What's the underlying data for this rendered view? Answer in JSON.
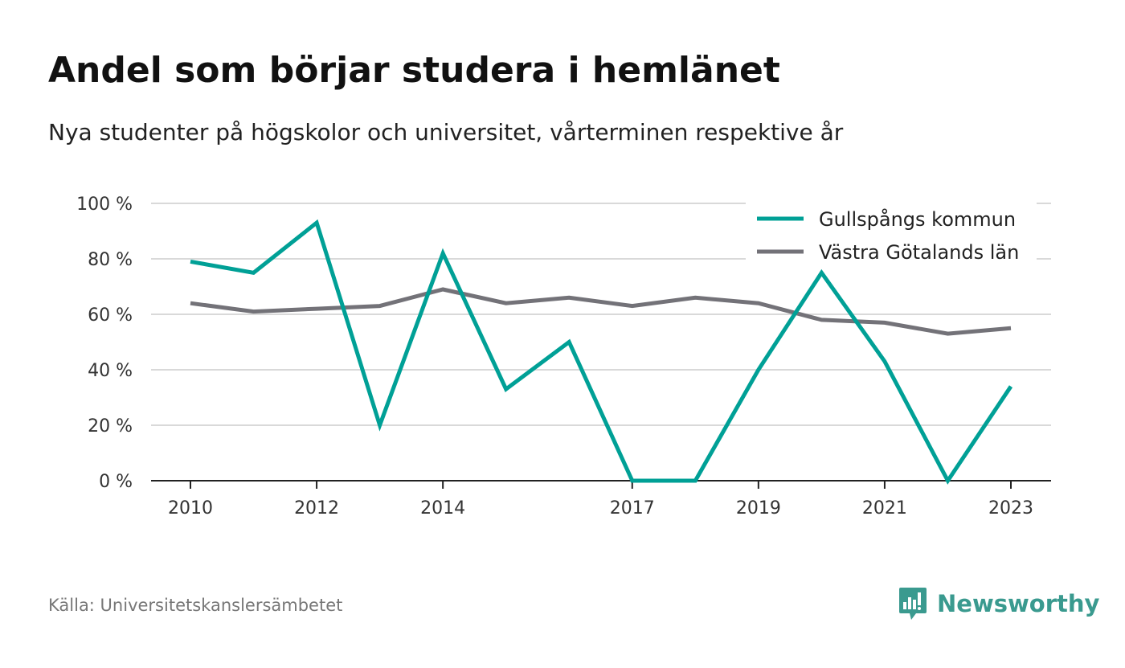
{
  "header": {
    "title": "Andel som börjar studera i hemlänet",
    "subtitle": "Nya studenter på högskolor och universitet, vårterminen respektive år"
  },
  "footer": {
    "source": "Källa: Universitetskanslersämbetet",
    "brand": "Newsworthy"
  },
  "colors": {
    "series_1": "#00a096",
    "series_2": "#737278",
    "brand": "#3a9a8f"
  },
  "chart_data": {
    "type": "line",
    "x": [
      2010,
      2011,
      2012,
      2013,
      2014,
      2015,
      2016,
      2017,
      2018,
      2019,
      2020,
      2021,
      2022,
      2023
    ],
    "x_tick_labels": [
      "2010",
      "2012",
      "2014",
      "2017",
      "2019",
      "2021",
      "2023"
    ],
    "x_tick_values": [
      2010,
      2012,
      2014,
      2017,
      2019,
      2021,
      2023
    ],
    "y_tick_labels": [
      "0 %",
      "20 %",
      "40 %",
      "60 %",
      "80 %",
      "100 %"
    ],
    "y_tick_values": [
      0,
      20,
      40,
      60,
      80,
      100
    ],
    "ylim": [
      0,
      100
    ],
    "xlim": [
      2010,
      2023
    ],
    "grid": true,
    "legend_position": "top-right",
    "series": [
      {
        "name": "Gullspångs kommun",
        "color": "#00a096",
        "values": [
          79,
          75,
          93,
          20,
          82,
          33,
          50,
          0,
          0,
          40,
          75,
          43,
          0,
          34
        ]
      },
      {
        "name": "Västra Götalands län",
        "color": "#737278",
        "values": [
          64,
          61,
          62,
          63,
          69,
          64,
          66,
          63,
          66,
          64,
          58,
          57,
          53,
          55
        ]
      }
    ]
  }
}
